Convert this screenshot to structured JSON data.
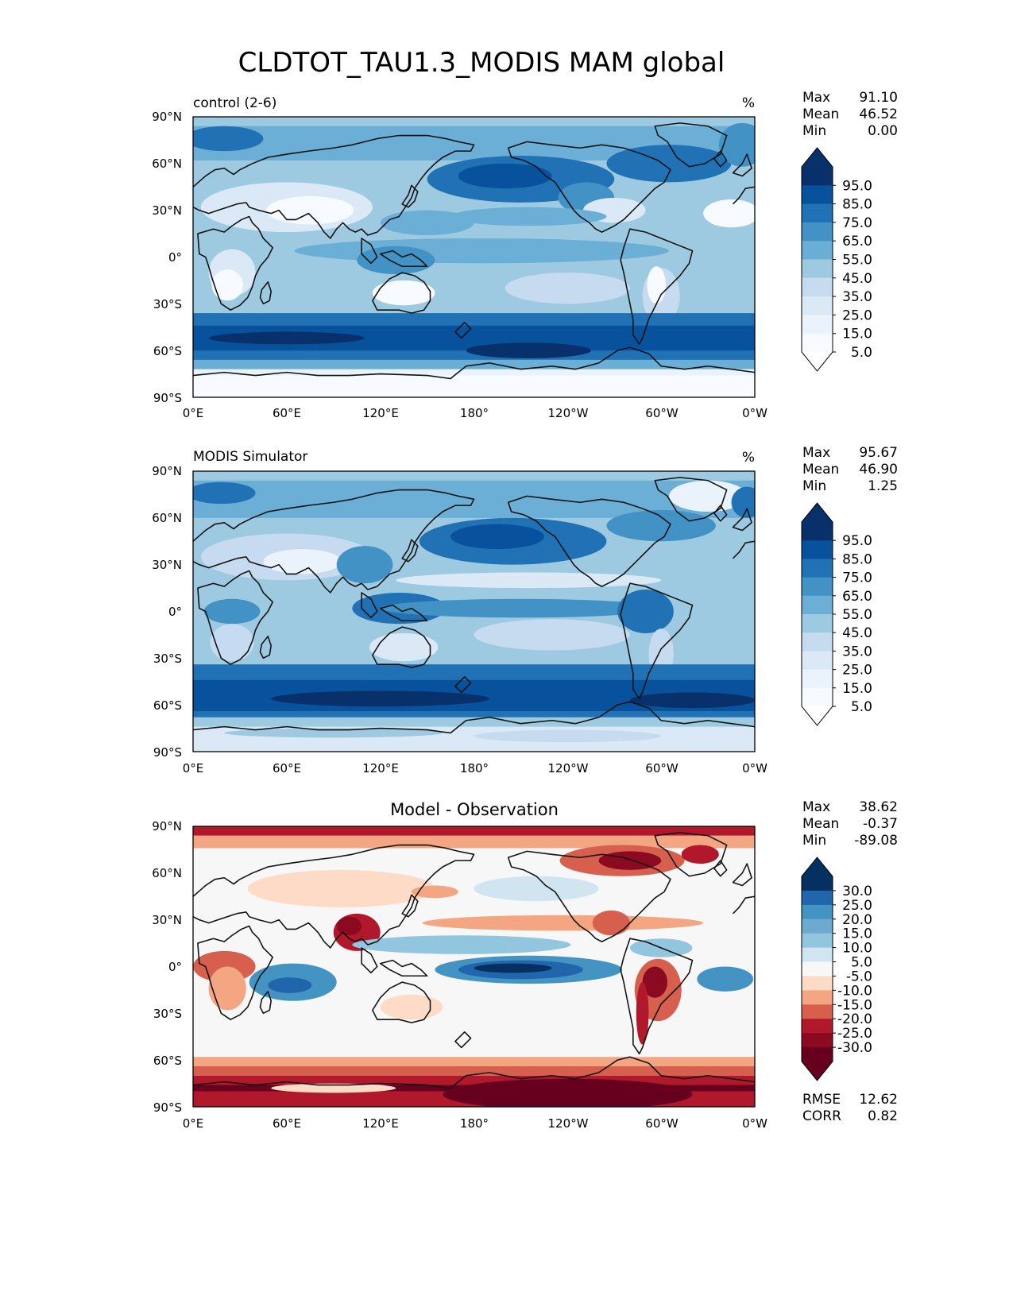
{
  "figure": {
    "title": "CLDTOT_TAU1.3_MODIS MAM global"
  },
  "chart_data": [
    {
      "type": "heatmap",
      "panel_id": "control",
      "title": "control (2-6)",
      "units": "%",
      "x_ticks": [
        "0°E",
        "60°E",
        "120°E",
        "180°",
        "120°W",
        "60°W",
        "0°W"
      ],
      "y_ticks": [
        "90°N",
        "60°N",
        "30°N",
        "0°",
        "30°S",
        "60°S",
        "90°S"
      ],
      "xlim": [
        0,
        360
      ],
      "ylim": [
        -90,
        90
      ],
      "stats": [
        {
          "label": "Max",
          "value": "91.10"
        },
        {
          "label": "Mean",
          "value": "46.52"
        },
        {
          "label": "Min",
          "value": "0.00"
        }
      ],
      "colorbar": {
        "labels": [
          "95.0",
          "85.0",
          "75.0",
          "65.0",
          "55.0",
          "45.0",
          "35.0",
          "25.0",
          "15.0",
          "5.0"
        ],
        "colors": [
          "#08306b",
          "#08519c",
          "#2171b5",
          "#4292c6",
          "#6baed6",
          "#9ecae1",
          "#c6dbef",
          "#dbe9f6",
          "#eaf2fb",
          "#f7fbff"
        ],
        "top_color": "#08306b",
        "bottom_color": "#ffffff"
      }
    },
    {
      "type": "heatmap",
      "panel_id": "obs",
      "title": "MODIS Simulator",
      "units": "%",
      "x_ticks": [
        "0°E",
        "60°E",
        "120°E",
        "180°",
        "120°W",
        "60°W",
        "0°W"
      ],
      "y_ticks": [
        "90°N",
        "60°N",
        "30°N",
        "0°",
        "30°S",
        "60°S",
        "90°S"
      ],
      "xlim": [
        0,
        360
      ],
      "ylim": [
        -90,
        90
      ],
      "stats": [
        {
          "label": "Max",
          "value": "95.67"
        },
        {
          "label": "Mean",
          "value": "46.90"
        },
        {
          "label": "Min",
          "value": "1.25"
        }
      ],
      "colorbar": {
        "labels": [
          "95.0",
          "85.0",
          "75.0",
          "65.0",
          "55.0",
          "45.0",
          "35.0",
          "25.0",
          "15.0",
          "5.0"
        ],
        "colors": [
          "#08306b",
          "#08519c",
          "#2171b5",
          "#4292c6",
          "#6baed6",
          "#9ecae1",
          "#c6dbef",
          "#dbe9f6",
          "#eaf2fb",
          "#f7fbff"
        ],
        "top_color": "#08306b",
        "bottom_color": "#ffffff"
      }
    },
    {
      "type": "heatmap",
      "panel_id": "diff",
      "title": "Model - Observation",
      "units": "",
      "x_ticks": [
        "0°E",
        "60°E",
        "120°E",
        "180°",
        "120°W",
        "60°W",
        "0°W"
      ],
      "y_ticks": [
        "90°N",
        "60°N",
        "30°N",
        "0°",
        "30°S",
        "60°S",
        "90°S"
      ],
      "xlim": [
        0,
        360
      ],
      "ylim": [
        -90,
        90
      ],
      "stats": [
        {
          "label": "Max",
          "value": "38.62"
        },
        {
          "label": "Mean",
          "value": "-0.37"
        },
        {
          "label": "Min",
          "value": "-89.08"
        }
      ],
      "extra_stats": [
        {
          "label": "RMSE",
          "value": "12.62"
        },
        {
          "label": "CORR",
          "value": "0.82"
        }
      ],
      "colorbar": {
        "labels": [
          "30.0",
          "25.0",
          "20.0",
          "15.0",
          "10.0",
          "5.0",
          "-5.0",
          "-10.0",
          "-15.0",
          "-20.0",
          "-25.0",
          "-30.0"
        ],
        "colors": [
          "#053061",
          "#2166ac",
          "#4393c3",
          "#6ea9d0",
          "#92c5de",
          "#d1e5f0",
          "#f7f7f7",
          "#fddbc7",
          "#f4a582",
          "#d6604d",
          "#b2182b",
          "#8b0a22",
          "#67001f"
        ],
        "top_color": "#053061",
        "bottom_color": "#67001f"
      }
    }
  ]
}
